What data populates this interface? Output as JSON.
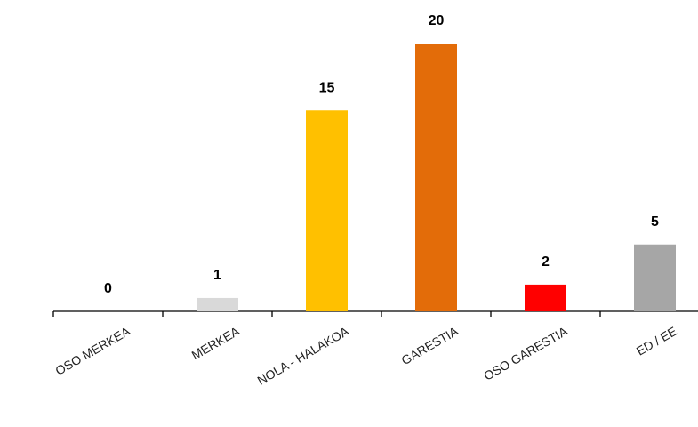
{
  "chart_data": {
    "type": "bar",
    "categories": [
      "OSO MERKEA",
      "MERKEA",
      "NOLA - HALAKOA",
      "GARESTIA",
      "OSO GARESTIA",
      "ED / EE"
    ],
    "values": [
      0,
      1,
      15,
      20,
      2,
      5
    ],
    "colors": [
      "#4472c4",
      "#d9d9d9",
      "#ffc000",
      "#e36c09",
      "#ff0000",
      "#a6a6a6"
    ]
  }
}
